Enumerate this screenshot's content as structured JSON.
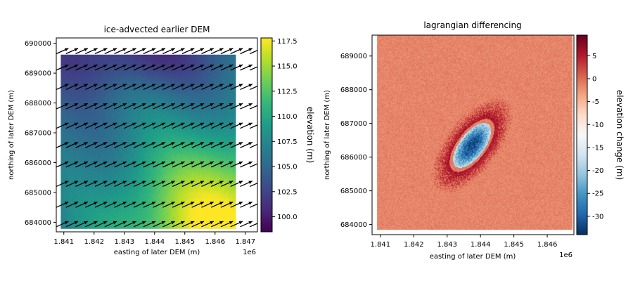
{
  "colors": {
    "viridis": [
      "#440154",
      "#482878",
      "#3e4989",
      "#31688e",
      "#26828e",
      "#1f9e89",
      "#35b779",
      "#6ece58",
      "#b5de2b",
      "#fde725"
    ],
    "rdbu": [
      "#053061",
      "#2166ac",
      "#4393c3",
      "#92c5de",
      "#d1e5f0",
      "#f7f7f7",
      "#fddbc7",
      "#f4a582",
      "#d6604d",
      "#b2182b",
      "#67001f"
    ]
  },
  "chart_data": [
    {
      "type": "heatmap",
      "title": "ice-advected earlier DEM",
      "xlabel": "easting of later DEM (m)",
      "ylabel": "northing of later DEM (m)",
      "x_offset_label": "1e6",
      "xlim": [
        1.84075,
        1.8474
      ],
      "ylim": [
        683680,
        690180
      ],
      "xticks": [
        1.841,
        1.842,
        1.843,
        1.844,
        1.845,
        1.846,
        1.847
      ],
      "yticks": [
        684000,
        685000,
        686000,
        687000,
        688000,
        689000,
        690000
      ],
      "colorbar": {
        "label": "elevation (m)",
        "range": [
          98.5,
          117.8
        ],
        "ticks": [
          100.0,
          102.5,
          105.0,
          107.5,
          110.0,
          112.5,
          115.0,
          117.5
        ],
        "colormap": "viridis"
      },
      "data_extent": {
        "x": [
          1.8409,
          1.8467
        ],
        "y": [
          683780,
          689620
        ]
      },
      "overlay": "ice velocity arrows",
      "arrow_grid": {
        "x": [
          1.84075,
          1.84107,
          1.84139,
          1.84171,
          1.84203,
          1.84235,
          1.84267,
          1.84299,
          1.84331,
          1.84363,
          1.84395,
          1.84427,
          1.84459,
          1.84491,
          1.84523,
          1.84555,
          1.84587,
          1.84619,
          1.84651,
          1.84683,
          1.84715
        ],
        "y": [
          683850,
          684500,
          685200,
          685850,
          686500,
          687150,
          687800,
          688450,
          689100,
          689650
        ],
        "direction": "east-northeast"
      },
      "field": {
        "base": 104.5,
        "high_center": [
          1.8465,
          683800
        ],
        "high_value": 117.5,
        "low_center": [
          1.8432,
          689600
        ],
        "low_value": 101.0
      }
    },
    {
      "type": "heatmap",
      "title": "lagrangian differencing",
      "xlabel": "easting of later DEM (m)",
      "ylabel": "northing of later DEM (m)",
      "x_offset_label": "1e6",
      "xlim": [
        1.84075,
        1.8468
      ],
      "ylim": [
        683700,
        689620
      ],
      "xticks": [
        1.841,
        1.842,
        1.843,
        1.844,
        1.845,
        1.846
      ],
      "yticks": [
        684000,
        685000,
        686000,
        687000,
        688000,
        689000
      ],
      "colorbar": {
        "label": "elevation change (m)",
        "range": [
          -34,
          9.5
        ],
        "ticks": [
          -30,
          -25,
          -20,
          -15,
          -10,
          -5,
          0,
          5
        ],
        "colormap": "RdBu_r"
      },
      "data_extent": {
        "x": [
          1.8409,
          1.84675
        ],
        "y": [
          683850,
          689620
        ]
      },
      "feature": {
        "type": "ellipse",
        "center": [
          1.84373,
          686360
        ],
        "semi_axes_m": [
          510,
          1100
        ],
        "rotation_deg": 38,
        "min_change": -32,
        "rim_change": 7,
        "background_change": -1.5
      }
    }
  ]
}
